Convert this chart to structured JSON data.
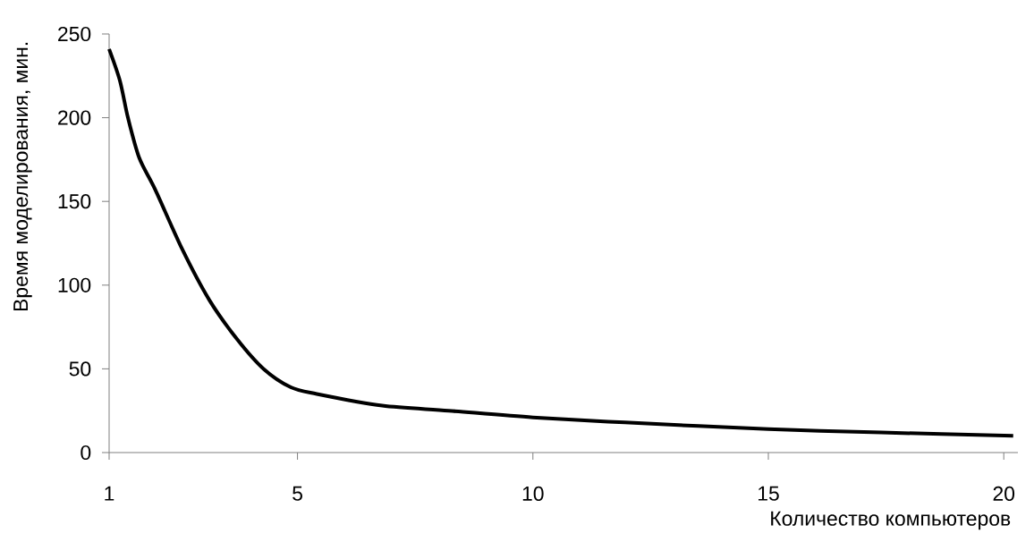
{
  "chart_data": {
    "type": "line",
    "xlabel": "Количество компьютеров",
    "ylabel": "Время моделирования, мин.",
    "x": [
      1,
      1.23,
      1.4,
      1.64,
      1.98,
      2.56,
      3.13,
      3.71,
      4.28,
      4.86,
      5.41,
      6.8,
      8.21,
      10,
      11.95,
      15,
      17.4,
      20.2
    ],
    "values": [
      241,
      222,
      200,
      176,
      157,
      121,
      91,
      68,
      50,
      39,
      35,
      28,
      25,
      21,
      18,
      14,
      12,
      10
    ],
    "color": "#000000",
    "xlim": [
      1,
      20.3
    ],
    "ylim": [
      0,
      250
    ],
    "xticks": [
      1,
      5,
      10,
      15,
      20
    ],
    "yticks": [
      0,
      50,
      100,
      150,
      200,
      250
    ]
  }
}
